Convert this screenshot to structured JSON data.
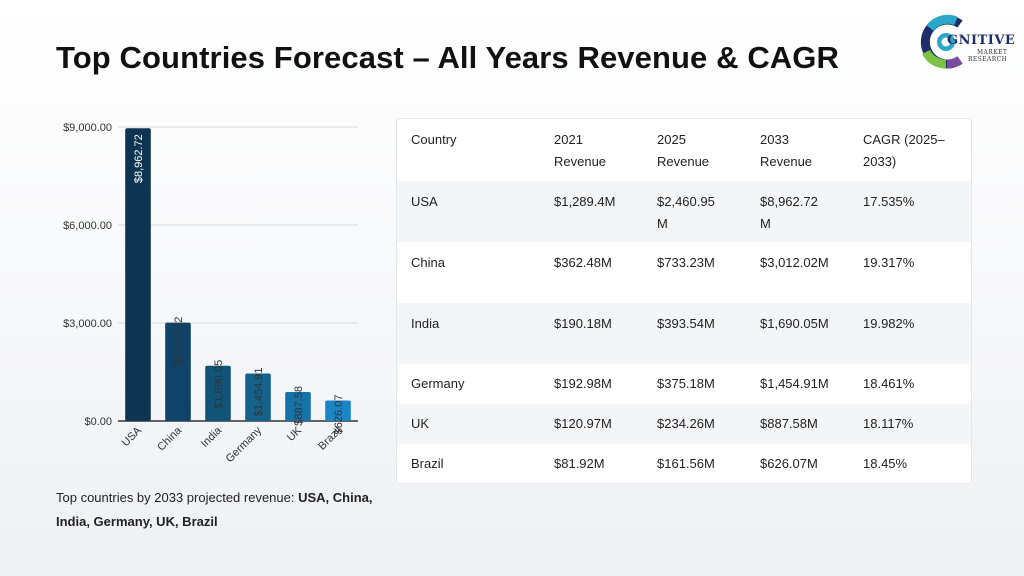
{
  "title": "Top Countries Forecast – All Years Revenue & CAGR",
  "logo": {
    "word": "GNITIVE",
    "sub_line1": "MARKET",
    "sub_line2": "RESEARCH",
    "colors": [
      "#1f2d6b",
      "#2aa7c9",
      "#7dc242",
      "#7a4a9e"
    ]
  },
  "chart_data": {
    "type": "bar",
    "categories": [
      "USA",
      "China",
      "India",
      "Germany",
      "UK",
      "Brazil"
    ],
    "values": [
      8962.72,
      3012.02,
      1690.05,
      1454.91,
      887.58,
      626.07
    ],
    "value_labels": [
      "$8,962.72",
      "$3,012.02",
      "$1,690.05",
      "$1,454.91",
      "$887.58",
      "$626.07"
    ],
    "yticks": [
      0,
      3000,
      6000,
      9000
    ],
    "ytick_labels": [
      "$0.00",
      "$3,000.00",
      "$6,000.00",
      "$9,000.00"
    ],
    "ylim": [
      0,
      9000
    ],
    "grid": true,
    "colors": [
      "#0d3552",
      "#0f4468",
      "#125478",
      "#15628a",
      "#1573a8",
      "#1b85c6"
    ],
    "xlabel": "",
    "ylabel": ""
  },
  "caption": {
    "prefix": "Top countries by 2033 projected revenue: ",
    "bold": "USA, China, India, Germany, UK, Brazil"
  },
  "table": {
    "headers": [
      [
        "Country"
      ],
      [
        "2021",
        "Revenue"
      ],
      [
        "2025",
        "Revenue"
      ],
      [
        "2033",
        "Revenue"
      ],
      [
        "CAGR (2025–",
        "2033)"
      ]
    ],
    "rows": [
      [
        [
          "USA"
        ],
        [
          "$1,289.4M"
        ],
        [
          "$2,460.95",
          "M"
        ],
        [
          "$8,962.72",
          "M"
        ],
        [
          "17.535%"
        ]
      ],
      [
        [
          "China"
        ],
        [
          "$362.48M"
        ],
        [
          "$733.23M"
        ],
        [
          "$3,012.02M"
        ],
        [
          "19.317%"
        ]
      ],
      [
        [
          "India"
        ],
        [
          "$190.18M"
        ],
        [
          "$393.54M"
        ],
        [
          "$1,690.05M"
        ],
        [
          "19.982%"
        ]
      ],
      [
        [
          "Germany"
        ],
        [
          "$192.98M"
        ],
        [
          "$375.18M"
        ],
        [
          "$1,454.91M"
        ],
        [
          "18.461%"
        ]
      ],
      [
        [
          "UK"
        ],
        [
          "$120.97M"
        ],
        [
          "$234.26M"
        ],
        [
          "$887.58M"
        ],
        [
          "18.117%"
        ]
      ],
      [
        [
          "Brazil"
        ],
        [
          "$81.92M"
        ],
        [
          "$161.56M"
        ],
        [
          "$626.07M"
        ],
        [
          "18.45%"
        ]
      ]
    ]
  }
}
